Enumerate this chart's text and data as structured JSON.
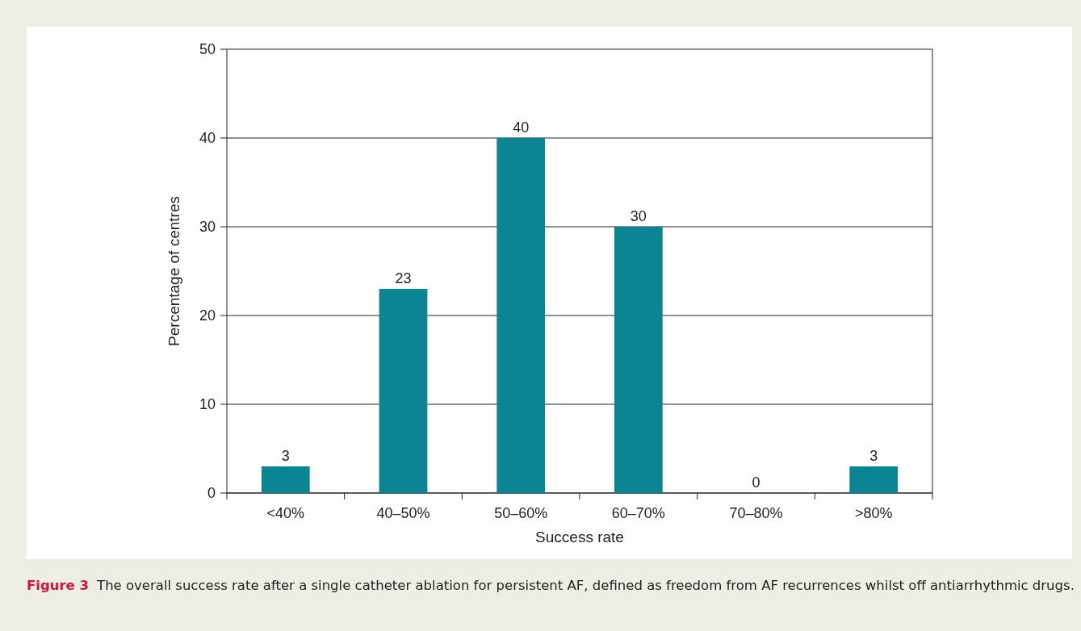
{
  "chart_data": {
    "type": "bar",
    "xlabel": "Success rate",
    "ylabel": "Percentage of centres",
    "categories": [
      "<40%",
      "40–50%",
      "50–60%",
      "60–70%",
      "70–80%",
      ">80%"
    ],
    "values": [
      3,
      23,
      40,
      30,
      0,
      3
    ],
    "color": "#0b8593",
    "ylim": [
      0,
      50
    ],
    "yticks": [
      0,
      10,
      20,
      30,
      40,
      50
    ],
    "grid": "y",
    "data_labels": true,
    "annotations": [
      "Figure 3",
      "The overall success rate after a single catheter ablation for persistent AF, defined as freedom from AF recurrences whilst off antiarrhythmic drugs."
    ]
  }
}
